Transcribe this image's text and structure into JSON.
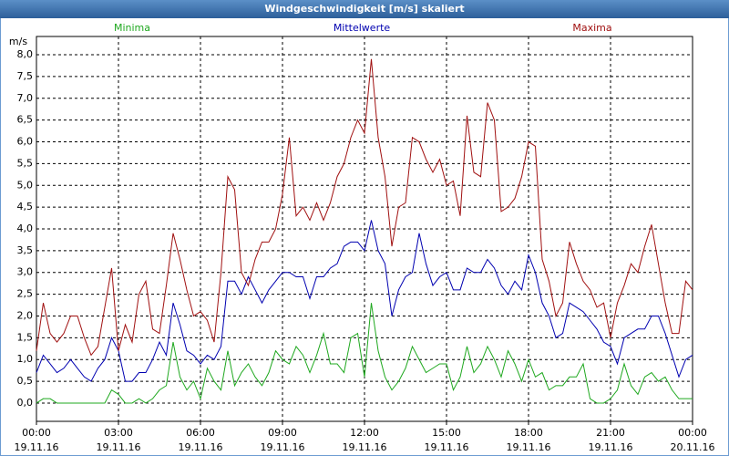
{
  "chart_data": {
    "type": "line",
    "title": "Windgeschwindigkeit [m/s] skaliert",
    "ylabel": "m/s",
    "xlim": [
      0,
      24
    ],
    "xticks": [
      {
        "value": 0,
        "label": "00:00"
      },
      {
        "value": 3,
        "label": "03:00"
      },
      {
        "value": 6,
        "label": "06:00"
      },
      {
        "value": 9,
        "label": "09:00"
      },
      {
        "value": 12,
        "label": "12:00"
      },
      {
        "value": 15,
        "label": "15:00"
      },
      {
        "value": 18,
        "label": "18:00"
      },
      {
        "value": 21,
        "label": "21:00"
      },
      {
        "value": 24,
        "label": "00:00"
      }
    ],
    "xtick_dates": [
      "19.11.16",
      "19.11.16",
      "19.11.16",
      "19.11.16",
      "19.11.16",
      "19.11.16",
      "19.11.16",
      "19.11.16",
      "20.11.16"
    ],
    "ylim": [
      -0.42,
      8.42
    ],
    "yticks": [
      {
        "value": 0,
        "label": "0,0"
      },
      {
        "value": 0.5,
        "label": "0,5"
      },
      {
        "value": 1,
        "label": "1,0"
      },
      {
        "value": 1.5,
        "label": "1,5"
      },
      {
        "value": 2,
        "label": "2,0"
      },
      {
        "value": 2.5,
        "label": "2,5"
      },
      {
        "value": 3,
        "label": "3,0"
      },
      {
        "value": 3.5,
        "label": "3,5"
      },
      {
        "value": 4,
        "label": "4,0"
      },
      {
        "value": 4.5,
        "label": "4,5"
      },
      {
        "value": 5,
        "label": "5,0"
      },
      {
        "value": 5.5,
        "label": "5,5"
      },
      {
        "value": 6,
        "label": "6,0"
      },
      {
        "value": 6.5,
        "label": "6,5"
      },
      {
        "value": 7,
        "label": "7,0"
      },
      {
        "value": 7.5,
        "label": "7,5"
      },
      {
        "value": 8,
        "label": "8,0"
      }
    ],
    "grid": true,
    "x": [
      0,
      0.25,
      0.5,
      0.75,
      1,
      1.25,
      1.5,
      1.75,
      2,
      2.25,
      2.5,
      2.75,
      3,
      3.25,
      3.5,
      3.75,
      4,
      4.25,
      4.5,
      4.75,
      5,
      5.25,
      5.5,
      5.75,
      6,
      6.25,
      6.5,
      6.75,
      7,
      7.25,
      7.5,
      7.75,
      8,
      8.25,
      8.5,
      8.75,
      9,
      9.25,
      9.5,
      9.75,
      10,
      10.25,
      10.5,
      10.75,
      11,
      11.25,
      11.5,
      11.75,
      12,
      12.25,
      12.5,
      12.75,
      13,
      13.25,
      13.5,
      13.75,
      14,
      14.25,
      14.5,
      14.75,
      15,
      15.25,
      15.5,
      15.75,
      16,
      16.25,
      16.5,
      16.75,
      17,
      17.25,
      17.5,
      17.75,
      18,
      18.25,
      18.5,
      18.75,
      19,
      19.25,
      19.5,
      19.75,
      20,
      20.25,
      20.5,
      20.75,
      21,
      21.25,
      21.5,
      21.75,
      22,
      22.25,
      22.5,
      22.75,
      23,
      23.25,
      23.5,
      23.75,
      24
    ],
    "series": [
      {
        "name": "Minima",
        "color": "#1fa81f",
        "values": [
          0,
          0.1,
          0.1,
          0,
          0,
          0,
          0,
          0,
          0,
          0,
          0,
          0.3,
          0.2,
          0,
          0,
          0.1,
          0,
          0.1,
          0.3,
          0.4,
          1.4,
          0.6,
          0.3,
          0.5,
          0.1,
          0.8,
          0.5,
          0.3,
          1.2,
          0.4,
          0.7,
          0.9,
          0.6,
          0.4,
          0.7,
          1.2,
          1.0,
          0.9,
          1.3,
          1.1,
          0.7,
          1.1,
          1.6,
          0.9,
          0.9,
          0.7,
          1.5,
          1.6,
          0.6,
          2.3,
          1.2,
          0.6,
          0.3,
          0.5,
          0.8,
          1.3,
          1.0,
          0.7,
          0.8,
          0.9,
          0.9,
          0.3,
          0.6,
          1.3,
          0.7,
          0.9,
          1.3,
          1.0,
          0.6,
          1.2,
          0.9,
          0.5,
          1.0,
          0.6,
          0.7,
          0.3,
          0.4,
          0.4,
          0.6,
          0.6,
          0.9,
          0.1,
          0,
          0,
          0.1,
          0.3,
          0.9,
          0.4,
          0.2,
          0.6,
          0.7,
          0.5,
          0.6,
          0.3,
          0.1,
          0.1,
          0.1
        ]
      },
      {
        "name": "Mittelwerte",
        "color": "#0000b0",
        "values": [
          0.7,
          1.1,
          0.9,
          0.7,
          0.8,
          1.0,
          0.8,
          0.6,
          0.5,
          0.8,
          1.0,
          1.5,
          1.2,
          0.5,
          0.5,
          0.7,
          0.7,
          1.0,
          1.4,
          1.1,
          2.3,
          1.8,
          1.2,
          1.1,
          0.9,
          1.1,
          1.0,
          1.3,
          2.8,
          2.8,
          2.5,
          2.9,
          2.6,
          2.3,
          2.6,
          2.8,
          3.0,
          3.0,
          2.9,
          2.9,
          2.4,
          2.9,
          2.9,
          3.1,
          3.2,
          3.6,
          3.7,
          3.7,
          3.5,
          4.2,
          3.5,
          3.2,
          2.0,
          2.6,
          2.9,
          3.0,
          3.9,
          3.2,
          2.7,
          2.9,
          3.0,
          2.6,
          2.6,
          3.1,
          3.0,
          3.0,
          3.3,
          3.1,
          2.7,
          2.5,
          2.8,
          2.6,
          3.4,
          3.0,
          2.3,
          2.0,
          1.5,
          1.6,
          2.3,
          2.2,
          2.1,
          1.9,
          1.7,
          1.4,
          1.3,
          0.9,
          1.5,
          1.6,
          1.7,
          1.7,
          2.0,
          2.0,
          1.6,
          1.1,
          0.6,
          1.0,
          1.1
        ]
      },
      {
        "name": "Maxima",
        "color": "#a01010",
        "values": [
          1.2,
          2.3,
          1.6,
          1.4,
          1.6,
          2.0,
          2.0,
          1.5,
          1.1,
          1.3,
          2.2,
          3.1,
          1.2,
          1.8,
          1.4,
          2.5,
          2.8,
          1.7,
          1.6,
          2.7,
          3.9,
          3.3,
          2.6,
          2.0,
          2.1,
          1.9,
          1.4,
          3.0,
          5.2,
          4.9,
          3.0,
          2.7,
          3.3,
          3.7,
          3.7,
          4.0,
          4.8,
          6.1,
          4.3,
          4.5,
          4.2,
          4.6,
          4.2,
          4.6,
          5.2,
          5.5,
          6.1,
          6.5,
          6.2,
          7.9,
          6.1,
          5.2,
          3.6,
          4.5,
          4.6,
          6.1,
          6.0,
          5.6,
          5.3,
          5.6,
          5.0,
          5.1,
          4.3,
          6.6,
          5.3,
          5.2,
          6.9,
          6.5,
          4.4,
          4.5,
          4.7,
          5.2,
          6.0,
          5.9,
          3.3,
          2.8,
          2.0,
          2.3,
          3.7,
          3.2,
          2.8,
          2.6,
          2.2,
          2.3,
          1.5,
          2.3,
          2.7,
          3.2,
          3.0,
          3.6,
          4.1,
          3.2,
          2.3,
          1.6,
          1.6,
          2.8,
          2.6
        ]
      }
    ]
  }
}
